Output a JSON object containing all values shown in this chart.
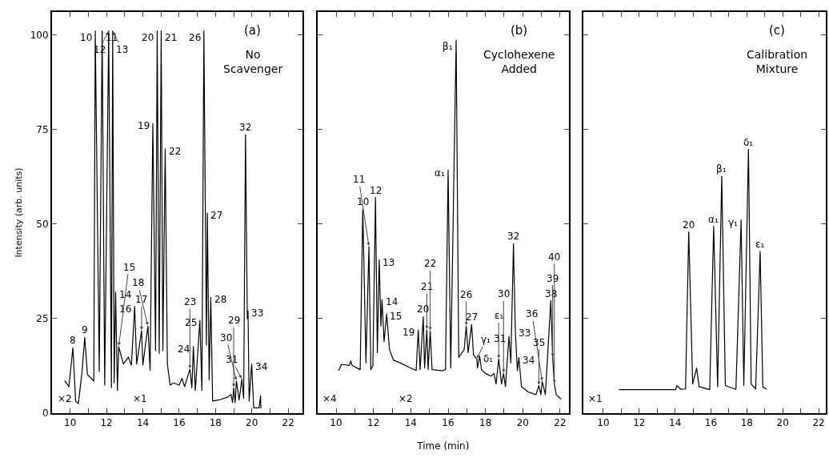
{
  "chart_data": [
    {
      "type": "line",
      "title": "(a)",
      "subtitle": "No Scavenger",
      "ylabel": "Intensity (arb. units)",
      "xlim": [
        9,
        22.8
      ],
      "ylim": [
        0,
        106
      ],
      "grid": false,
      "marker": "none",
      "line_style": "solid",
      "tick_labels": "xy",
      "xticks": [
        10,
        {
          "value": 11,
          "label": null
        },
        12,
        {
          "value": 13,
          "label": null
        },
        14,
        {
          "value": 15,
          "label": null
        },
        16,
        {
          "value": 17,
          "label": null
        },
        18,
        {
          "value": 19,
          "label": null
        },
        20,
        {
          "value": 21,
          "label": null
        },
        22
      ],
      "yticks": [
        0,
        25,
        50,
        75,
        100
      ],
      "series": [
        {
          "color": "#000000",
          "x": [
            9.71,
            9.93,
            10.15,
            10.3,
            10.45,
            10.66,
            10.8,
            10.95,
            11.3,
            11.38,
            11.6,
            11.76,
            11.9,
            12.12,
            12.27,
            12.34,
            12.42,
            12.5,
            12.6,
            12.67,
            12.93,
            13.2,
            13.37,
            13.55,
            13.66,
            13.93,
            14.0,
            14.28,
            14.4,
            14.55,
            14.7,
            14.79,
            14.9,
            15.01,
            15.1,
            15.23,
            15.35,
            15.5,
            15.7,
            16.0,
            16.15,
            16.3,
            16.59,
            16.7,
            16.78,
            16.89,
            17.14,
            17.25,
            17.36,
            17.5,
            17.55,
            17.65,
            17.74,
            17.84,
            18.2,
            18.64,
            18.86,
            18.94,
            19.0,
            19.08,
            19.15,
            19.3,
            19.45,
            19.55,
            19.65,
            19.75,
            19.79,
            19.85,
            19.99,
            20.1,
            20.4,
            20.48,
            20.5
          ],
          "values": [
            8.5,
            7,
            17.3,
            3.2,
            2.5,
            11.3,
            20,
            10.2,
            8.5,
            101,
            11,
            101,
            7.4,
            101,
            6.7,
            101,
            8,
            32,
            6,
            17.6,
            13,
            14.8,
            12.7,
            28.2,
            13,
            21.8,
            12.7,
            23,
            11.3,
            76.5,
            16.5,
            101,
            15.8,
            101,
            16.5,
            69.8,
            13,
            7.4,
            8,
            7.4,
            9.2,
            7,
            11.6,
            6.7,
            17.6,
            6,
            24.6,
            6,
            101,
            18,
            52.8,
            8.8,
            30.6,
            3.2,
            3.5,
            4.2,
            4.9,
            2.8,
            6.7,
            2.8,
            8.5,
            3.5,
            9,
            3.9,
            73.6,
            25,
            27,
            3.2,
            13,
            1.4,
            1.4,
            4.6,
            1.4
          ]
        }
      ],
      "annotations": [
        {
          "text": "10",
          "x": 11.38,
          "y": 101
        },
        {
          "text": "11",
          "x": 11.76,
          "y": 101
        },
        {
          "text": "12",
          "x": 12.12,
          "y": 101
        },
        {
          "text": "13",
          "x": 12.34,
          "y": 101
        },
        {
          "text": "20",
          "x": 14.79,
          "y": 101
        },
        {
          "text": "21",
          "x": 15.01,
          "y": 101
        },
        {
          "text": "26",
          "x": 17.36,
          "y": 101
        },
        {
          "text": "19",
          "x": 14.55,
          "y": 76.5
        },
        {
          "text": "22",
          "x": 15.23,
          "y": 69.8
        },
        {
          "text": "32",
          "x": 19.65,
          "y": 73.6
        },
        {
          "text": "27",
          "x": 17.55,
          "y": 52.8
        },
        {
          "text": "14",
          "x": 12.5,
          "y": 32
        },
        {
          "text": "16",
          "x": 13.55,
          "y": 28.2
        },
        {
          "text": "18",
          "x": 14.28,
          "y": 23
        },
        {
          "text": "17",
          "x": 13.93,
          "y": 21.8
        },
        {
          "text": "15",
          "x": 12.67,
          "y": 17.6
        },
        {
          "text": "9",
          "x": 10.8,
          "y": 20
        },
        {
          "text": "8",
          "x": 10.15,
          "y": 17.3
        },
        {
          "text": "28",
          "x": 17.74,
          "y": 30.6
        },
        {
          "text": "25",
          "x": 17.14,
          "y": 24.6
        },
        {
          "text": "24",
          "x": 16.78,
          "y": 17.6
        },
        {
          "text": "23",
          "x": 16.59,
          "y": 11.6
        },
        {
          "text": "33",
          "x": 19.79,
          "y": 27
        },
        {
          "text": "34",
          "x": 19.99,
          "y": 13
        },
        {
          "text": "30",
          "x": 19.15,
          "y": 8.5
        },
        {
          "text": "31",
          "x": 19.45,
          "y": 9
        },
        {
          "text": "29",
          "x": 19.0,
          "y": 6.7
        },
        "×2",
        "×1"
      ]
    },
    {
      "type": "line",
      "title": "(b)",
      "subtitle": "Cyclohexene Added",
      "xlabel": "Time (min)",
      "xlim": [
        9,
        22.47
      ],
      "ylim": [
        0,
        106
      ],
      "grid": false,
      "marker": "none",
      "line_style": "solid",
      "tick_labels": "x",
      "xticks": [
        10,
        {
          "value": 11,
          "label": null
        },
        12,
        {
          "value": 13,
          "label": null
        },
        14,
        {
          "value": 15,
          "label": null
        },
        16,
        {
          "value": 17,
          "label": null
        },
        18,
        {
          "value": 19,
          "label": null
        },
        20,
        {
          "value": 21,
          "label": null
        },
        22
      ],
      "yticks": [
        0,
        25,
        50,
        75,
        100
      ],
      "series": [
        {
          "color": "#000000",
          "x": [
            10.14,
            10.29,
            10.71,
            10.79,
            10.86,
            11.29,
            11.43,
            11.6,
            11.76,
            11.86,
            11.97,
            12.11,
            12.21,
            12.31,
            12.4,
            12.46,
            12.57,
            12.71,
            12.86,
            13.07,
            13.43,
            14.0,
            14.29,
            14.4,
            14.5,
            14.67,
            14.74,
            14.86,
            14.93,
            15.04,
            15.14,
            15.71,
            15.86,
            16.0,
            16.14,
            16.43,
            16.57,
            16.86,
            16.97,
            17.07,
            17.26,
            17.36,
            17.54,
            17.57,
            17.69,
            17.79,
            18.0,
            18.29,
            18.46,
            18.57,
            18.71,
            18.86,
            18.97,
            19.07,
            19.26,
            19.36,
            19.5,
            19.6,
            19.71,
            19.79,
            19.93,
            20.29,
            20.71,
            20.86,
            20.97,
            21.04,
            21.21,
            21.5,
            21.6,
            21.69,
            21.79,
            22.03
          ],
          "values": [
            11.3,
            12.9,
            12.6,
            13.8,
            12.6,
            11.5,
            53.9,
            13.3,
            44,
            11.5,
            12.6,
            57,
            16,
            40.5,
            23,
            30,
            18.9,
            26.2,
            16.8,
            14,
            13.3,
            11.9,
            11.3,
            22,
            11.5,
            25.5,
            11.9,
            22,
            11.5,
            21.7,
            11.5,
            11.2,
            11.5,
            64.2,
            11.9,
            98.6,
            14.7,
            16.8,
            23,
            16,
            23.4,
            15.4,
            14.3,
            11.9,
            15,
            11.5,
            10.5,
            9.8,
            10.5,
            7.7,
            14.3,
            7.7,
            10.5,
            7,
            20.3,
            13.3,
            44.8,
            21.7,
            11.2,
            14.7,
            7,
            5.6,
            4.9,
            7.3,
            4.9,
            8.4,
            4.9,
            29.7,
            14.7,
            7.7,
            4.9,
            3.8
          ]
        }
      ],
      "annotations": [
        {
          "text": "β₁",
          "x": 16.43,
          "y": 98.6
        },
        {
          "text": "α₁",
          "x": 16.0,
          "y": 64.2
        },
        {
          "text": "10",
          "x": 11.43,
          "y": 53.9
        },
        {
          "text": "12",
          "x": 12.11,
          "y": 57
        },
        {
          "text": "11",
          "x": 11.76,
          "y": 44
        },
        {
          "text": "13",
          "x": 12.31,
          "y": 40.5
        },
        {
          "text": "14",
          "x": 12.46,
          "y": 30
        },
        {
          "text": "15",
          "x": 12.71,
          "y": 26.2
        },
        {
          "text": "20",
          "x": 14.67,
          "y": 25.5
        },
        {
          "text": "19",
          "x": 14.4,
          "y": 22
        },
        {
          "text": "21",
          "x": 14.86,
          "y": 22
        },
        {
          "text": "22",
          "x": 15.04,
          "y": 21.7
        },
        {
          "text": "26",
          "x": 16.97,
          "y": 23
        },
        {
          "text": "27",
          "x": 17.26,
          "y": 23.4
        },
        {
          "text": "γ₁",
          "x": 17.54,
          "y": 14.3
        },
        {
          "text": "δ₁",
          "x": 17.69,
          "y": 15
        },
        {
          "text": "ε₁",
          "x": 18.71,
          "y": 14.3
        },
        {
          "text": "31",
          "x": 19.26,
          "y": 20.3
        },
        {
          "text": "30",
          "x": 18.97,
          "y": 10.5
        },
        {
          "text": "32",
          "x": 19.5,
          "y": 44.8
        },
        {
          "text": "33",
          "x": 19.6,
          "y": 21.7
        },
        {
          "text": "34",
          "x": 19.79,
          "y": 14.7
        },
        {
          "text": "38",
          "x": 21.5,
          "y": 29.7
        },
        {
          "text": "39",
          "x": 21.6,
          "y": 14.7
        },
        {
          "text": "40",
          "x": 21.69,
          "y": 7.7
        },
        {
          "text": "35",
          "x": 20.86,
          "y": 7.3
        },
        {
          "text": "36",
          "x": 21.04,
          "y": 8.4
        },
        "×4",
        "×2"
      ]
    },
    {
      "type": "line",
      "title": "(c)",
      "subtitle": "Calibration Mixture",
      "xlim": [
        8.9,
        22.4
      ],
      "ylim": [
        0,
        106
      ],
      "grid": false,
      "marker": "none",
      "line_style": "solid",
      "tick_labels": "x",
      "xticks": [
        10,
        {
          "value": 11,
          "label": null
        },
        12,
        {
          "value": 13,
          "label": null
        },
        14,
        {
          "value": 15,
          "label": null
        },
        16,
        {
          "value": 17,
          "label": null
        },
        18,
        {
          "value": 19,
          "label": null
        },
        20,
        {
          "value": 21,
          "label": null
        },
        22
      ],
      "yticks": [
        0,
        25,
        50,
        75,
        100
      ],
      "series": [
        {
          "color": "#000000",
          "x": [
            10.88,
            14.03,
            14.1,
            14.32,
            14.58,
            14.76,
            14.98,
            15.2,
            15.34,
            15.93,
            16.15,
            16.37,
            16.6,
            16.8,
            17.39,
            17.68,
            17.83,
            18.09,
            18.24,
            18.49,
            18.74,
            18.89,
            19.08
          ],
          "values": [
            6.2,
            6.2,
            7.3,
            6.3,
            6.4,
            47.9,
            7.7,
            11.9,
            7,
            6.2,
            49.4,
            7,
            62.6,
            7.3,
            6.3,
            51,
            7.3,
            69.7,
            7.7,
            6.4,
            42.7,
            6.9,
            6.4
          ]
        }
      ],
      "annotations": [
        {
          "text": "20",
          "x": 14.76,
          "y": 47.9
        },
        {
          "text": "α₁",
          "x": 16.15,
          "y": 49.4
        },
        {
          "text": "β₁",
          "x": 16.6,
          "y": 62.6
        },
        {
          "text": "γ₁",
          "x": 17.68,
          "y": 51
        },
        {
          "text": "δ₁",
          "x": 18.09,
          "y": 69.7
        },
        {
          "text": "ε₁",
          "x": 18.74,
          "y": 42.7
        },
        "×1"
      ]
    }
  ]
}
